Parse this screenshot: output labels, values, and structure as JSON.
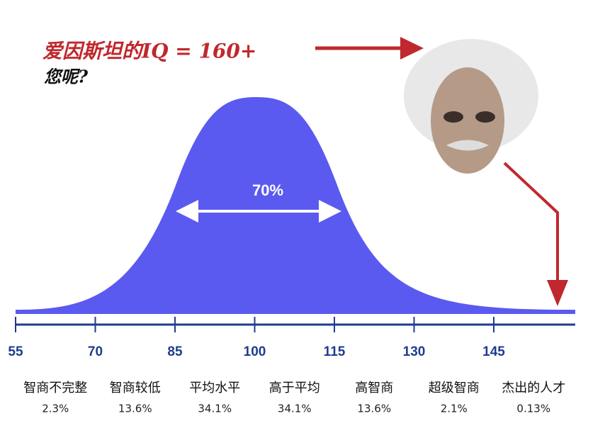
{
  "chart_data": {
    "type": "bell",
    "title": "爱因斯坦的IQ = 160+",
    "subtitle": "您呢?",
    "annotation": "70%",
    "xlim": [
      55,
      160
    ],
    "xticks": [
      55,
      70,
      85,
      100,
      115,
      130,
      145
    ],
    "categories": [
      "智商不完整",
      "智商较低",
      "平均水平",
      "高于平均",
      "高智商",
      "超级智商",
      "杰出的人才"
    ],
    "values": [
      2.3,
      13.6,
      34.1,
      34.1,
      13.6,
      2.1,
      0.13
    ],
    "value_labels": [
      "2.3%",
      "13.6%",
      "34.1%",
      "34.1%",
      "13.6%",
      "2.1%",
      "0.13%"
    ],
    "color": "#5a5af0"
  }
}
